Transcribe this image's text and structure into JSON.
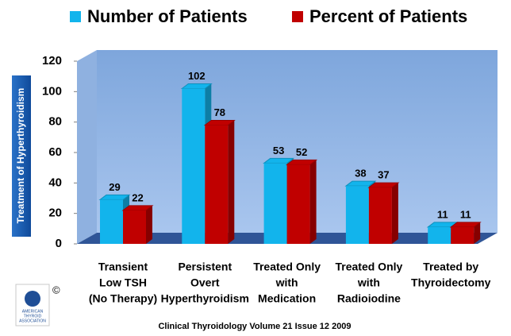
{
  "chart_data": {
    "type": "bar3d",
    "y_label": "Treatment of  Hyperthyroidism",
    "categories": [
      [
        "Transient",
        "Low TSH",
        "(No Therapy)"
      ],
      [
        "Persistent",
        "Overt",
        "Hyperthyroidism"
      ],
      [
        "Treated Only",
        "with",
        "Medication"
      ],
      [
        "Treated Only",
        "with",
        "Radioiodine"
      ],
      [
        "Treated by",
        "Thyroidectomy"
      ]
    ],
    "series": [
      {
        "name": "Number of Patients",
        "color": "#12b4ec",
        "values": [
          29,
          102,
          53,
          38,
          11
        ]
      },
      {
        "name": "Percent of Patients",
        "color": "#c00000",
        "values": [
          22,
          78,
          52,
          37,
          11
        ]
      }
    ],
    "ylim": [
      0,
      120
    ],
    "yticks": [
      0,
      20,
      40,
      60,
      80,
      100,
      120
    ],
    "grid": false,
    "legend": "top",
    "footer": "Clinical Thyroidology Volume 21 Issue 12 2009",
    "logo": {
      "lines": [
        "AMERICAN",
        "THYROID",
        "ASSOCIATION"
      ],
      "mark": "©"
    }
  }
}
